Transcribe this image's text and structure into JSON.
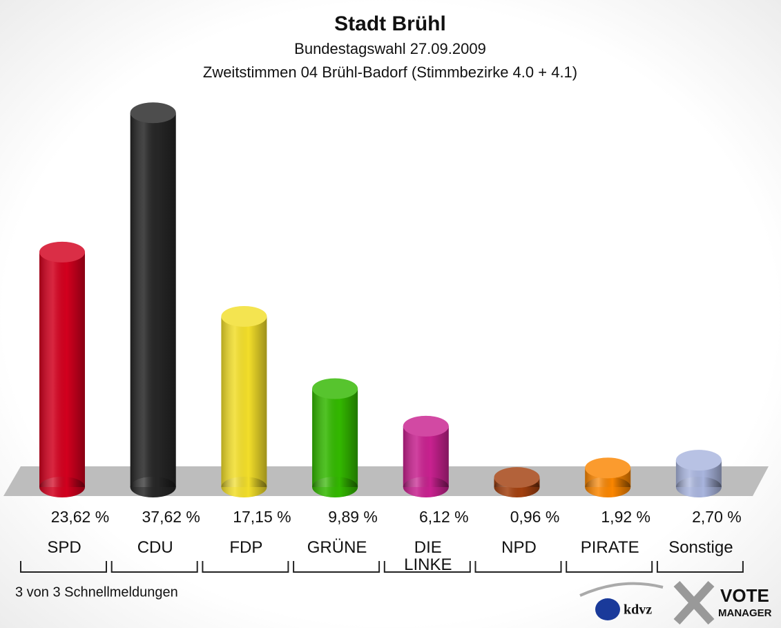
{
  "chart_data": {
    "type": "bar",
    "title": "Stadt Brühl",
    "subtitle": "Bundestagswahl 27.09.2009",
    "subtitle2": "Zweitstimmen 04 Brühl-Badorf (Stimmbezirke 4.0 + 4.1)",
    "categories": [
      "SPD",
      "CDU",
      "FDP",
      "GRÜNE",
      "DIE LINKE",
      "NPD",
      "PIRATE",
      "Sonstige"
    ],
    "values": [
      23.62,
      37.62,
      17.15,
      9.89,
      6.12,
      0.96,
      1.92,
      2.7
    ],
    "value_labels": [
      "23,62 %",
      "37,62 %",
      "17,15 %",
      "9,89 %",
      "6,12 %",
      "0,96 %",
      "1,92 %",
      "2,70 %"
    ],
    "colors": [
      "#d2001e",
      "#262626",
      "#f2de2a",
      "#33b800",
      "#c8218f",
      "#a3400f",
      "#fb8600",
      "#a9b5de"
    ],
    "footer": "3 von 3 Schnellmeldungen",
    "logo_text": "kdvz",
    "logo2_line1": "VOTE",
    "logo2_line2": "MANAGER"
  }
}
